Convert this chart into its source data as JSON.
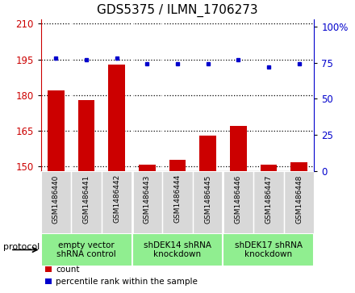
{
  "title": "GDS5375 / ILMN_1706273",
  "samples": [
    "GSM1486440",
    "GSM1486441",
    "GSM1486442",
    "GSM1486443",
    "GSM1486444",
    "GSM1486445",
    "GSM1486446",
    "GSM1486447",
    "GSM1486448"
  ],
  "counts": [
    182,
    178,
    193,
    151,
    153,
    163,
    167,
    151,
    152
  ],
  "percentiles": [
    78,
    77,
    78,
    74,
    74,
    74,
    77,
    72,
    74
  ],
  "ylim_left": [
    148,
    212
  ],
  "yticks_left": [
    150,
    165,
    180,
    195,
    210
  ],
  "ylim_right": [
    0,
    105
  ],
  "yticks_right": [
    0,
    25,
    50,
    75,
    100
  ],
  "yticklabels_right": [
    "0",
    "25",
    "50",
    "75",
    "100%"
  ],
  "bar_color": "#cc0000",
  "dot_color": "#0000cc",
  "protocols": [
    {
      "label": "empty vector\nshRNA control",
      "start": 0,
      "end": 3
    },
    {
      "label": "shDEK14 shRNA\nknockdown",
      "start": 3,
      "end": 6
    },
    {
      "label": "shDEK17 shRNA\nknockdown",
      "start": 6,
      "end": 9
    }
  ],
  "protocol_label": "protocol",
  "legend_count_label": "count",
  "legend_percentile_label": "percentile rank within the sample",
  "bg_color": "#ffffff",
  "sample_bg_color": "#d8d8d8",
  "protocol_bg_color": "#90EE90",
  "title_fontsize": 11,
  "tick_fontsize": 8.5,
  "sample_fontsize": 6.5,
  "protocol_fontsize": 7.5,
  "legend_fontsize": 7.5
}
